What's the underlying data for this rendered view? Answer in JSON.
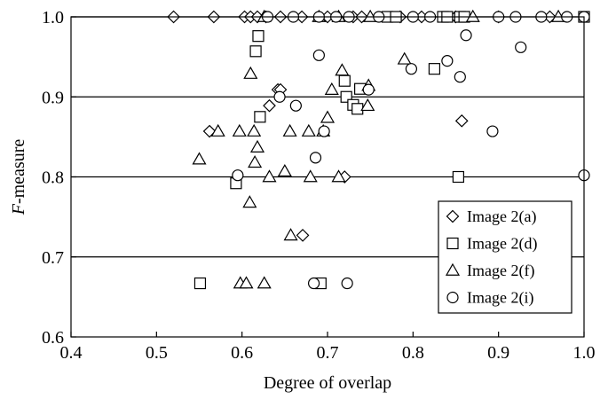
{
  "chart_data": {
    "type": "scatter",
    "title": "",
    "xlabel": "Degree of overlap",
    "ylabel": "F-measure",
    "ylabel_italic": "F",
    "ylabel_rest": "-measure",
    "xlim": [
      0.4,
      1.0
    ],
    "ylim": [
      0.6,
      1.0
    ],
    "x_ticks": [
      0.4,
      0.5,
      0.6,
      0.7,
      0.8,
      0.9,
      1.0
    ],
    "x_tick_labels": [
      "0.4",
      "0.5",
      "0.6",
      "0.7",
      "0.8",
      "0.9",
      "1.0"
    ],
    "y_ticks": [
      0.6,
      0.7,
      0.8,
      0.9,
      1.0
    ],
    "y_tick_labels": [
      "0.6",
      "0.7",
      "0.8",
      "0.9",
      "1.0"
    ],
    "grid": "horizontal",
    "legend_position": "bottom-right",
    "series": [
      {
        "name": "Image 2(a)",
        "marker": "diamond",
        "points": [
          [
            0.52,
            1.0
          ],
          [
            0.567,
            1.0
          ],
          [
            0.603,
            1.0
          ],
          [
            0.61,
            1.0
          ],
          [
            0.618,
            1.0
          ],
          [
            0.628,
            1.0
          ],
          [
            0.645,
            1.0
          ],
          [
            0.67,
            1.0
          ],
          [
            0.7,
            1.0
          ],
          [
            0.73,
            1.0
          ],
          [
            0.74,
            1.0
          ],
          [
            0.785,
            1.0
          ],
          [
            0.81,
            1.0
          ],
          [
            0.85,
            1.0
          ],
          [
            0.9,
            1.0
          ],
          [
            0.96,
            1.0
          ],
          [
            0.562,
            0.857
          ],
          [
            0.642,
            0.909
          ],
          [
            0.645,
            0.909
          ],
          [
            0.632,
            0.889
          ],
          [
            0.671,
            0.727
          ],
          [
            0.72,
            0.8
          ],
          [
            0.857,
            0.87
          ]
        ]
      },
      {
        "name": "Image 2(d)",
        "marker": "square",
        "points": [
          [
            0.616,
            0.957
          ],
          [
            0.619,
            0.976
          ],
          [
            0.621,
            0.875
          ],
          [
            0.593,
            0.792
          ],
          [
            0.551,
            0.667
          ],
          [
            0.692,
            0.667
          ],
          [
            0.72,
            0.92
          ],
          [
            0.722,
            0.9
          ],
          [
            0.73,
            0.89
          ],
          [
            0.735,
            0.885
          ],
          [
            0.738,
            0.91
          ],
          [
            0.825,
            0.935
          ],
          [
            0.853,
            0.8
          ],
          [
            0.77,
            1.0
          ],
          [
            0.78,
            1.0
          ],
          [
            0.835,
            1.0
          ],
          [
            0.84,
            1.0
          ],
          [
            0.855,
            1.0
          ],
          [
            0.86,
            1.0
          ],
          [
            1.0,
            1.0
          ]
        ]
      },
      {
        "name": "Image 2(f)",
        "marker": "triangle",
        "points": [
          [
            0.55,
            0.822
          ],
          [
            0.572,
            0.857
          ],
          [
            0.597,
            0.857
          ],
          [
            0.61,
            0.929
          ],
          [
            0.614,
            0.857
          ],
          [
            0.615,
            0.818
          ],
          [
            0.618,
            0.837
          ],
          [
            0.609,
            0.768
          ],
          [
            0.632,
            0.8
          ],
          [
            0.65,
            0.807
          ],
          [
            0.656,
            0.857
          ],
          [
            0.657,
            0.727
          ],
          [
            0.678,
            0.857
          ],
          [
            0.68,
            0.8
          ],
          [
            0.695,
            0.857
          ],
          [
            0.7,
            0.874
          ],
          [
            0.705,
            0.909
          ],
          [
            0.713,
            0.8
          ],
          [
            0.717,
            0.933
          ],
          [
            0.747,
            0.889
          ],
          [
            0.748,
            0.914
          ],
          [
            0.79,
            0.947
          ],
          [
            0.598,
            0.667
          ],
          [
            0.605,
            0.667
          ],
          [
            0.626,
            0.667
          ],
          [
            0.626,
            1.0
          ],
          [
            0.69,
            1.0
          ],
          [
            0.713,
            1.0
          ],
          [
            0.75,
            1.0
          ],
          [
            0.87,
            1.0
          ],
          [
            0.97,
            1.0
          ]
        ]
      },
      {
        "name": "Image 2(i)",
        "marker": "circle",
        "points": [
          [
            0.595,
            0.802
          ],
          [
            0.644,
            0.9
          ],
          [
            0.663,
            0.889
          ],
          [
            0.686,
            0.824
          ],
          [
            0.69,
            0.952
          ],
          [
            0.696,
            0.857
          ],
          [
            0.748,
            0.909
          ],
          [
            0.798,
            0.935
          ],
          [
            0.84,
            0.945
          ],
          [
            0.855,
            0.925
          ],
          [
            0.862,
            0.977
          ],
          [
            0.893,
            0.857
          ],
          [
            0.926,
            0.962
          ],
          [
            1.0,
            0.802
          ],
          [
            0.684,
            0.667
          ],
          [
            0.723,
            0.667
          ],
          [
            0.63,
            1.0
          ],
          [
            0.66,
            1.0
          ],
          [
            0.69,
            1.0
          ],
          [
            0.71,
            1.0
          ],
          [
            0.725,
            1.0
          ],
          [
            0.76,
            1.0
          ],
          [
            0.8,
            1.0
          ],
          [
            0.82,
            1.0
          ],
          [
            0.9,
            1.0
          ],
          [
            0.92,
            1.0
          ],
          [
            0.95,
            1.0
          ],
          [
            0.98,
            1.0
          ],
          [
            1.0,
            1.0
          ]
        ]
      }
    ]
  }
}
